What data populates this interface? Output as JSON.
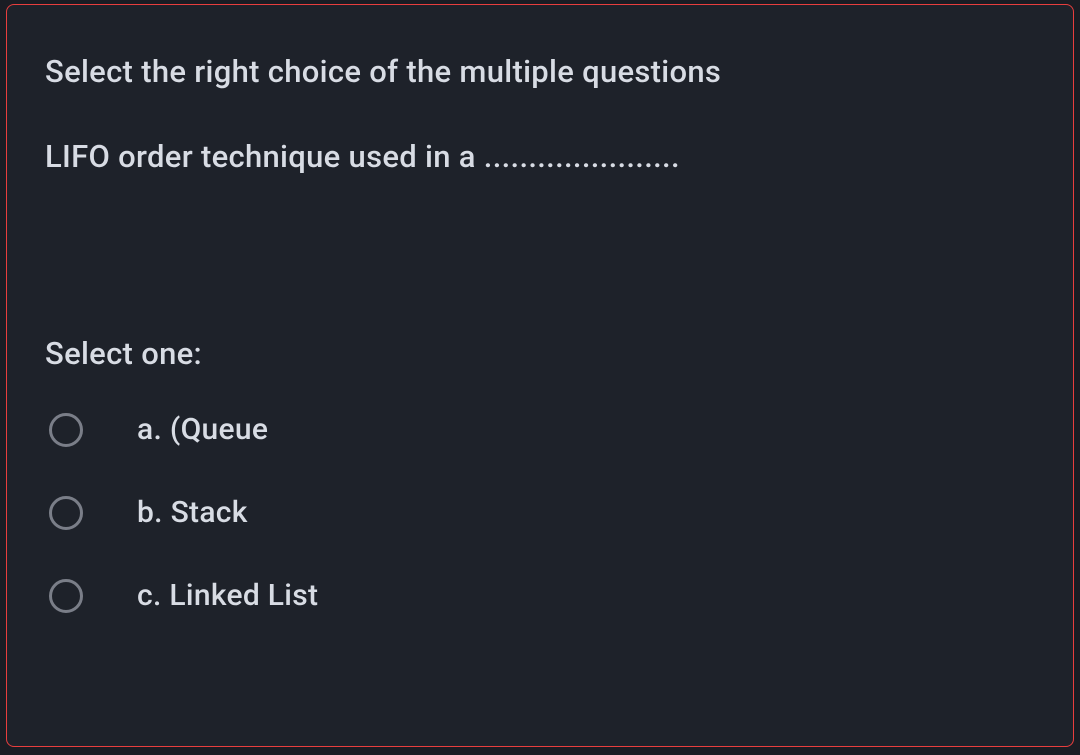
{
  "question": {
    "instruction": "Select the right choice of the multiple questions",
    "prompt": "LIFO order technique used in a ......................",
    "select_label": "Select one:",
    "options": [
      {
        "letter": "a",
        "text": "(Queue"
      },
      {
        "letter": "b",
        "text": "Stack"
      },
      {
        "letter": "c",
        "text": "Linked List"
      }
    ]
  },
  "styling": {
    "background_color": "#1a1d24",
    "container_background": "#1e222a",
    "border_color": "#e83e3e",
    "text_color": "#d8dce4",
    "radio_border_color": "#7a7e88",
    "font_size_main": 31,
    "font_size_option": 30,
    "border_radius": 8
  }
}
